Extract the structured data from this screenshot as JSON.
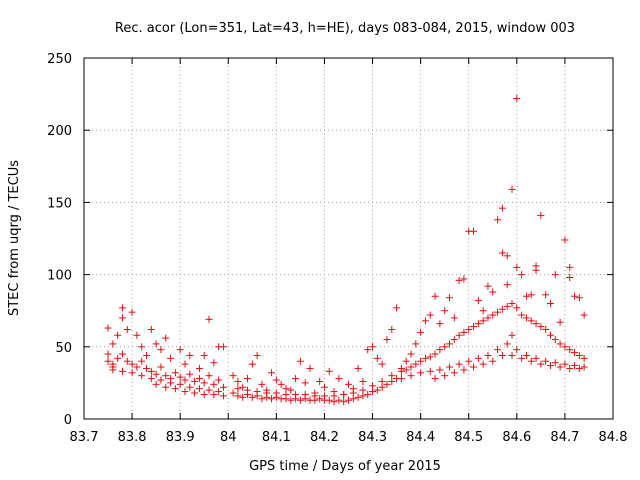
{
  "chart_data": {
    "type": "scatter",
    "title": "Rec. acor (Lon=351, Lat=43, h=HE), days 083-084, 2015, window 003",
    "xlabel": "GPS time / Days of year 2015",
    "ylabel": "STEC from uqrg / TECUs",
    "xlim": [
      83.7,
      84.8
    ],
    "ylim": [
      0,
      250
    ],
    "xticks": [
      "83.7",
      "83.8",
      "83.9",
      "84",
      "84.1",
      "84.2",
      "84.3",
      "84.4",
      "84.5",
      "84.6",
      "84.7",
      "84.8"
    ],
    "yticks": [
      "0",
      "50",
      "100",
      "150",
      "200",
      "250"
    ],
    "marker": "+",
    "color": "#e01010",
    "grid": true,
    "series": [
      {
        "name": "",
        "points": [
          [
            83.75,
            63
          ],
          [
            83.75,
            45
          ],
          [
            83.76,
            36
          ],
          [
            83.76,
            52
          ],
          [
            83.77,
            58
          ],
          [
            83.78,
            77
          ],
          [
            83.78,
            70
          ],
          [
            83.79,
            62
          ],
          [
            83.8,
            74
          ],
          [
            83.81,
            58
          ],
          [
            83.82,
            50
          ],
          [
            83.83,
            44
          ],
          [
            83.84,
            62
          ],
          [
            83.85,
            52
          ],
          [
            83.86,
            48
          ],
          [
            83.87,
            56
          ],
          [
            83.88,
            42
          ],
          [
            83.9,
            48
          ],
          [
            83.91,
            38
          ],
          [
            83.92,
            44
          ],
          [
            83.94,
            35
          ],
          [
            83.95,
            44
          ],
          [
            83.96,
            69
          ],
          [
            83.97,
            39
          ],
          [
            83.98,
            50
          ],
          [
            83.99,
            50
          ],
          [
            83.75,
            40
          ],
          [
            83.76,
            38
          ],
          [
            83.77,
            42
          ],
          [
            83.78,
            45
          ],
          [
            83.79,
            40
          ],
          [
            83.8,
            38
          ],
          [
            83.81,
            36
          ],
          [
            83.82,
            40
          ],
          [
            83.83,
            35
          ],
          [
            83.84,
            33
          ],
          [
            83.85,
            31
          ],
          [
            83.86,
            36
          ],
          [
            83.87,
            30
          ],
          [
            83.88,
            28
          ],
          [
            83.89,
            32
          ],
          [
            83.9,
            29
          ],
          [
            83.91,
            27
          ],
          [
            83.92,
            31
          ],
          [
            83.93,
            26
          ],
          [
            83.94,
            28
          ],
          [
            83.95,
            25
          ],
          [
            83.96,
            30
          ],
          [
            83.97,
            24
          ],
          [
            83.98,
            27
          ],
          [
            83.99,
            22
          ],
          [
            83.76,
            34
          ],
          [
            83.78,
            33
          ],
          [
            83.8,
            32
          ],
          [
            83.82,
            30
          ],
          [
            83.84,
            28
          ],
          [
            83.86,
            27
          ],
          [
            83.88,
            25
          ],
          [
            83.9,
            24
          ],
          [
            83.92,
            22
          ],
          [
            83.94,
            21
          ],
          [
            83.96,
            20
          ],
          [
            83.98,
            19
          ],
          [
            83.85,
            24
          ],
          [
            83.87,
            22
          ],
          [
            83.89,
            21
          ],
          [
            83.91,
            19
          ],
          [
            83.93,
            18
          ],
          [
            83.95,
            17
          ],
          [
            83.97,
            17
          ],
          [
            83.99,
            16
          ],
          [
            84.01,
            30
          ],
          [
            84.02,
            26
          ],
          [
            84.03,
            22
          ],
          [
            84.04,
            28
          ],
          [
            84.05,
            38
          ],
          [
            84.06,
            44
          ],
          [
            84.07,
            24
          ],
          [
            84.08,
            20
          ],
          [
            84.09,
            32
          ],
          [
            84.1,
            27
          ],
          [
            84.11,
            24
          ],
          [
            84.12,
            21
          ],
          [
            84.13,
            20
          ],
          [
            84.14,
            28
          ],
          [
            84.15,
            40
          ],
          [
            84.16,
            25
          ],
          [
            84.17,
            35
          ],
          [
            84.18,
            18
          ],
          [
            84.19,
            26
          ],
          [
            84.2,
            22
          ],
          [
            84.21,
            33
          ],
          [
            84.22,
            19
          ],
          [
            84.23,
            28
          ],
          [
            84.24,
            17
          ],
          [
            84.25,
            24
          ],
          [
            84.26,
            21
          ],
          [
            84.27,
            35
          ],
          [
            84.28,
            26
          ],
          [
            84.29,
            48
          ],
          [
            84.3,
            50
          ],
          [
            84.31,
            42
          ],
          [
            84.32,
            38
          ],
          [
            84.33,
            55
          ],
          [
            84.34,
            62
          ],
          [
            84.35,
            77
          ],
          [
            84.01,
            18
          ],
          [
            84.02,
            16
          ],
          [
            84.03,
            15
          ],
          [
            84.04,
            17
          ],
          [
            84.05,
            15
          ],
          [
            84.06,
            16
          ],
          [
            84.07,
            14
          ],
          [
            84.08,
            15
          ],
          [
            84.09,
            14
          ],
          [
            84.1,
            15
          ],
          [
            84.11,
            14
          ],
          [
            84.12,
            14
          ],
          [
            84.13,
            13
          ],
          [
            84.14,
            14
          ],
          [
            84.15,
            13
          ],
          [
            84.16,
            14
          ],
          [
            84.17,
            13
          ],
          [
            84.18,
            13
          ],
          [
            84.19,
            14
          ],
          [
            84.2,
            13
          ],
          [
            84.21,
            13
          ],
          [
            84.22,
            12
          ],
          [
            84.23,
            13
          ],
          [
            84.24,
            12
          ],
          [
            84.25,
            13
          ],
          [
            84.26,
            14
          ],
          [
            84.27,
            15
          ],
          [
            84.28,
            16
          ],
          [
            84.29,
            17
          ],
          [
            84.3,
            19
          ],
          [
            84.31,
            20
          ],
          [
            84.32,
            22
          ],
          [
            84.33,
            24
          ],
          [
            84.34,
            26
          ],
          [
            84.35,
            28
          ],
          [
            84.02,
            21
          ],
          [
            84.04,
            20
          ],
          [
            84.06,
            19
          ],
          [
            84.08,
            18
          ],
          [
            84.1,
            18
          ],
          [
            84.12,
            17
          ],
          [
            84.14,
            17
          ],
          [
            84.16,
            17
          ],
          [
            84.18,
            16
          ],
          [
            84.2,
            16
          ],
          [
            84.22,
            16
          ],
          [
            84.24,
            17
          ],
          [
            84.26,
            18
          ],
          [
            84.28,
            20
          ],
          [
            84.3,
            23
          ],
          [
            84.32,
            26
          ],
          [
            84.34,
            30
          ],
          [
            84.36,
            35
          ],
          [
            84.37,
            40
          ],
          [
            84.38,
            45
          ],
          [
            84.39,
            52
          ],
          [
            84.4,
            60
          ],
          [
            84.41,
            68
          ],
          [
            84.42,
            72
          ],
          [
            84.43,
            85
          ],
          [
            84.44,
            66
          ],
          [
            84.45,
            75
          ],
          [
            84.46,
            84
          ],
          [
            84.47,
            70
          ],
          [
            84.48,
            96
          ],
          [
            84.49,
            97
          ],
          [
            84.5,
            130
          ],
          [
            84.51,
            130
          ],
          [
            84.52,
            82
          ],
          [
            84.53,
            75
          ],
          [
            84.54,
            92
          ],
          [
            84.55,
            88
          ],
          [
            84.56,
            138
          ],
          [
            84.57,
            146
          ],
          [
            84.57,
            115
          ],
          [
            84.58,
            113
          ],
          [
            84.58,
            93
          ],
          [
            84.59,
            159
          ],
          [
            84.6,
            222
          ],
          [
            84.6,
            105
          ],
          [
            84.61,
            100
          ],
          [
            84.62,
            85
          ],
          [
            84.63,
            86
          ],
          [
            84.64,
            106
          ],
          [
            84.64,
            103
          ],
          [
            84.65,
            141
          ],
          [
            84.66,
            86
          ],
          [
            84.67,
            80
          ],
          [
            84.68,
            100
          ],
          [
            84.69,
            67
          ],
          [
            84.7,
            124
          ],
          [
            84.71,
            105
          ],
          [
            84.71,
            98
          ],
          [
            84.72,
            85
          ],
          [
            84.73,
            84
          ],
          [
            84.74,
            72
          ],
          [
            84.36,
            33
          ],
          [
            84.37,
            34
          ],
          [
            84.38,
            36
          ],
          [
            84.39,
            38
          ],
          [
            84.4,
            40
          ],
          [
            84.41,
            42
          ],
          [
            84.42,
            43
          ],
          [
            84.43,
            45
          ],
          [
            84.44,
            48
          ],
          [
            84.45,
            50
          ],
          [
            84.46,
            52
          ],
          [
            84.47,
            55
          ],
          [
            84.48,
            58
          ],
          [
            84.49,
            60
          ],
          [
            84.5,
            62
          ],
          [
            84.51,
            64
          ],
          [
            84.52,
            66
          ],
          [
            84.53,
            68
          ],
          [
            84.54,
            70
          ],
          [
            84.55,
            72
          ],
          [
            84.56,
            74
          ],
          [
            84.57,
            76
          ],
          [
            84.58,
            78
          ],
          [
            84.59,
            80
          ],
          [
            84.6,
            77
          ],
          [
            84.61,
            72
          ],
          [
            84.62,
            70
          ],
          [
            84.63,
            68
          ],
          [
            84.64,
            66
          ],
          [
            84.65,
            64
          ],
          [
            84.66,
            62
          ],
          [
            84.67,
            58
          ],
          [
            84.68,
            55
          ],
          [
            84.69,
            52
          ],
          [
            84.7,
            50
          ],
          [
            84.71,
            48
          ],
          [
            84.72,
            46
          ],
          [
            84.73,
            44
          ],
          [
            84.74,
            42
          ],
          [
            84.36,
            28
          ],
          [
            84.38,
            30
          ],
          [
            84.4,
            32
          ],
          [
            84.42,
            33
          ],
          [
            84.44,
            34
          ],
          [
            84.46,
            36
          ],
          [
            84.48,
            38
          ],
          [
            84.5,
            40
          ],
          [
            84.52,
            42
          ],
          [
            84.54,
            44
          ],
          [
            84.56,
            48
          ],
          [
            84.58,
            52
          ],
          [
            84.59,
            58
          ],
          [
            84.6,
            48
          ],
          [
            84.62,
            44
          ],
          [
            84.64,
            42
          ],
          [
            84.66,
            40
          ],
          [
            84.68,
            39
          ],
          [
            84.7,
            38
          ],
          [
            84.72,
            37
          ],
          [
            84.74,
            36
          ],
          [
            84.43,
            28
          ],
          [
            84.45,
            30
          ],
          [
            84.47,
            32
          ],
          [
            84.49,
            34
          ],
          [
            84.51,
            36
          ],
          [
            84.53,
            38
          ],
          [
            84.55,
            40
          ],
          [
            84.57,
            44
          ],
          [
            84.59,
            44
          ],
          [
            84.61,
            42
          ],
          [
            84.63,
            40
          ],
          [
            84.65,
            38
          ],
          [
            84.67,
            37
          ],
          [
            84.69,
            36
          ],
          [
            84.71,
            35
          ],
          [
            84.73,
            35
          ]
        ]
      }
    ]
  }
}
